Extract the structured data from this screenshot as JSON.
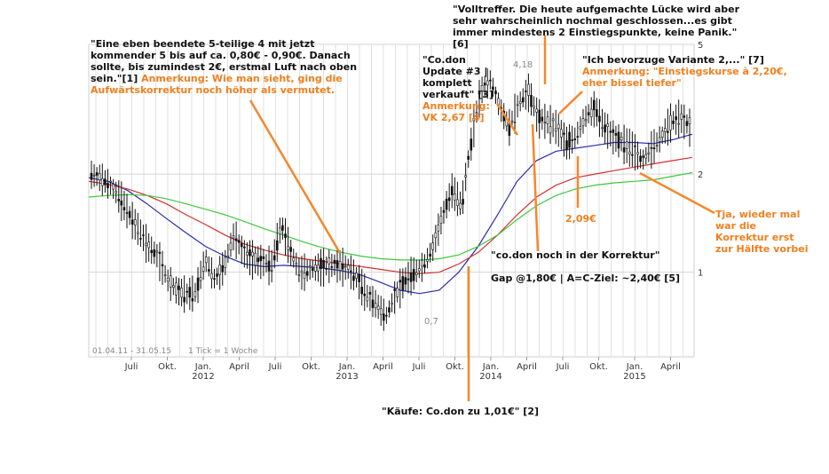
{
  "chart_data": {
    "type": "candlestick",
    "title": "",
    "xlabel": "",
    "ylabel": "",
    "y_scale": "log",
    "ylim": [
      0.55,
      5.0
    ],
    "y_ticks": [
      1,
      2,
      5
    ],
    "x_tick_labels": [
      "Juli",
      "Okt.",
      "Jan.",
      "April",
      "Juli",
      "Okt.",
      "Jan.",
      "April",
      "Juli",
      "Okt.",
      "Jan.",
      "April",
      "Juli",
      "Okt.",
      "Jan.",
      "April"
    ],
    "year_labels": [
      "2012",
      "2013",
      "2014",
      "2015"
    ],
    "period_label": "01.04.11 - 31.05.15",
    "tick_label": "1 Tick = 1 Woche",
    "price_labels": {
      "high": "4,18",
      "low": "0,7"
    },
    "grid": true,
    "series": [
      {
        "name": "",
        "kind": "price",
        "color": "#111111",
        "values": [
          2.0,
          1.95,
          1.85,
          1.7,
          1.5,
          1.35,
          1.2,
          1.12,
          0.95,
          0.88,
          0.86,
          0.87,
          1.1,
          0.95,
          1.05,
          1.3,
          1.15,
          1.1,
          1.08,
          1.05,
          1.4,
          1.15,
          1.0,
          1.02,
          1.04,
          1.05,
          1.06,
          1.03,
          0.96,
          0.85,
          0.8,
          0.73,
          0.85,
          0.95,
          1.0,
          1.05,
          1.2,
          1.5,
          1.8,
          1.6,
          2.5,
          3.6,
          3.9,
          3.2,
          2.8,
          3.3,
          3.6,
          3.0,
          2.9,
          2.8,
          2.5,
          2.6,
          3.0,
          3.2,
          2.8,
          2.6,
          2.5,
          2.4,
          2.2,
          2.4,
          2.6,
          2.9,
          3.0,
          2.8
        ]
      },
      {
        "name": "",
        "kind": "moving-average",
        "color": "#2b2bb0",
        "values": [
          1.95,
          1.9,
          1.78,
          1.62,
          1.46,
          1.32,
          1.2,
          1.12,
          1.06,
          1.04,
          1.05,
          1.04,
          1.03,
          1.01,
          0.98,
          0.93,
          0.88,
          0.86,
          0.88,
          1.0,
          1.2,
          1.5,
          1.9,
          2.2,
          2.35,
          2.4,
          2.45,
          2.5,
          2.5,
          2.48,
          2.55,
          2.65
        ]
      },
      {
        "name": "",
        "kind": "moving-average",
        "color": "#d43030",
        "values": [
          1.9,
          1.86,
          1.8,
          1.72,
          1.62,
          1.5,
          1.4,
          1.3,
          1.22,
          1.17,
          1.13,
          1.1,
          1.08,
          1.06,
          1.04,
          1.02,
          1.0,
          0.99,
          1.0,
          1.06,
          1.15,
          1.3,
          1.5,
          1.7,
          1.85,
          1.95,
          2.0,
          2.05,
          2.1,
          2.15,
          2.2,
          2.25
        ]
      },
      {
        "name": "",
        "kind": "moving-average",
        "color": "#3ec83e",
        "values": [
          1.7,
          1.72,
          1.73,
          1.72,
          1.68,
          1.62,
          1.56,
          1.5,
          1.43,
          1.36,
          1.3,
          1.24,
          1.19,
          1.15,
          1.12,
          1.1,
          1.09,
          1.09,
          1.1,
          1.13,
          1.2,
          1.3,
          1.45,
          1.6,
          1.72,
          1.8,
          1.85,
          1.88,
          1.9,
          1.92,
          1.97,
          2.02
        ]
      }
    ]
  },
  "annotations": {
    "a1": {
      "black": "\"Eine eben beendete 5-teilige 4 mit jetzt kommender 5 bis auf ca. 0,80€ - 0,90€. Danach sollte, bis zumindest 2€, erstmal Luft nach oben sein.\"[1] ",
      "orange": "Anmerkung: Wie man sieht, ging die Aufwärtskorrektur noch höher als vermutet."
    },
    "a2": {
      "black": "\"Käufe: Co.don zu 1,01€\" [2]"
    },
    "a3": {
      "black": "\"Co.don Update #3 | komplett verkauft\" [3]",
      "orange": "Anmerkung: VK 2,67 [4]"
    },
    "a4": {
      "black": "\"co.don noch in der Korrektur\""
    },
    "a5": {
      "black": "Gap @1,80€ | A=C-Ziel: ~2,40€ [5]"
    },
    "a6": {
      "black": "\"Volltreffer. Die heute aufgemachte Lücke wird aber sehr wahrscheinlich nochmal geschlossen...es gibt immer mindestens 2 Einstiegspunkte, keine Panik.\" [6]"
    },
    "a7": {
      "black": "\"Ich bevorzuge Variante 2,...\" [7]",
      "orange": "Anmerkung: \"Einstiegskurse à 2,20€, eher bissel tiefer\""
    },
    "a8": {
      "orange": "2,09€"
    },
    "a9": {
      "orange": "Tja, wieder mal war die Korrektur erst zur Hälfte vorbei"
    }
  },
  "colors": {
    "annotation_orange": "#f07f1e",
    "arrow_orange": "#f5872a",
    "grid": "#d8d8d8"
  }
}
